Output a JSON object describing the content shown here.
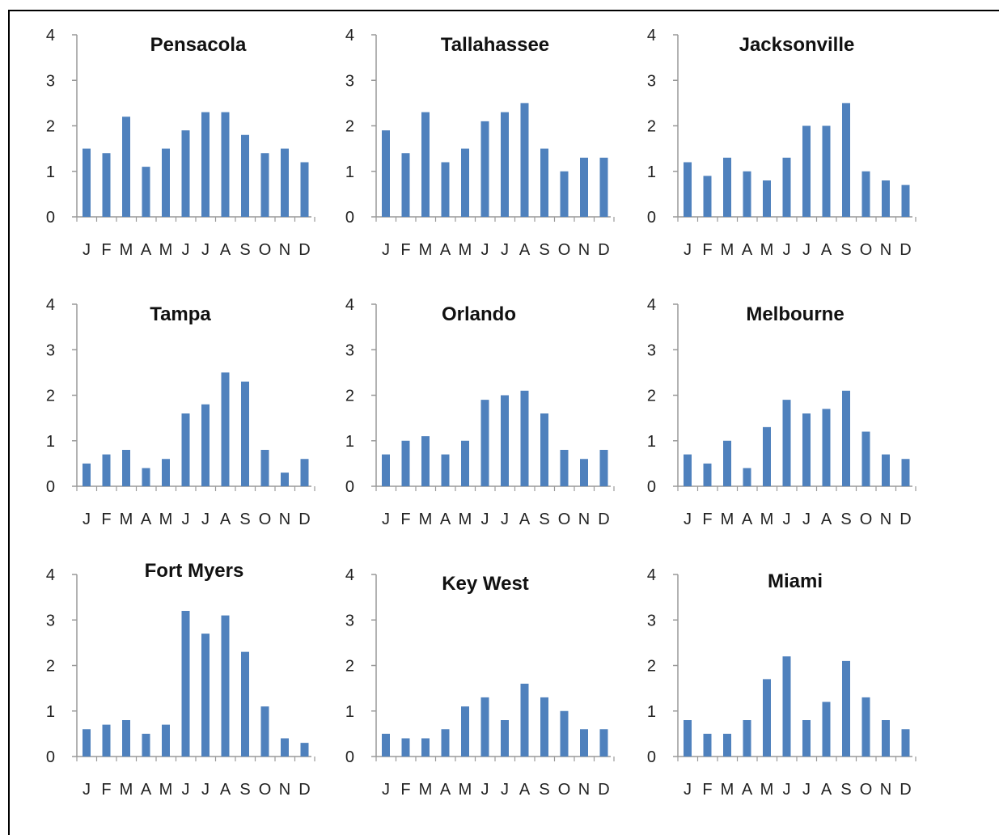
{
  "colors": {
    "bar": "#4F81BD",
    "axis": "#999999"
  },
  "chart_data": [
    {
      "type": "bar",
      "title": "Pensacola",
      "categories": [
        "J",
        "F",
        "M",
        "A",
        "M",
        "J",
        "J",
        "A",
        "S",
        "O",
        "N",
        "D"
      ],
      "values": [
        1.5,
        1.4,
        2.2,
        1.1,
        1.5,
        1.9,
        2.3,
        2.3,
        1.8,
        1.4,
        1.5,
        1.2
      ],
      "yticks": [
        "0",
        "1",
        "2",
        "3",
        "4"
      ],
      "ylim": [
        0,
        4
      ],
      "grid": false,
      "legend": "none"
    },
    {
      "type": "bar",
      "title": "Tallahassee",
      "categories": [
        "J",
        "F",
        "M",
        "A",
        "M",
        "J",
        "J",
        "A",
        "S",
        "O",
        "N",
        "D"
      ],
      "values": [
        1.9,
        1.4,
        2.3,
        1.2,
        1.5,
        2.1,
        2.3,
        2.5,
        1.5,
        1.0,
        1.3,
        1.3
      ],
      "yticks": [
        "0",
        "1",
        "2",
        "3",
        "4"
      ],
      "ylim": [
        0,
        4
      ],
      "grid": false,
      "legend": "none"
    },
    {
      "type": "bar",
      "title": "Jacksonville",
      "categories": [
        "J",
        "F",
        "M",
        "A",
        "M",
        "J",
        "J",
        "A",
        "S",
        "O",
        "N",
        "D"
      ],
      "values": [
        1.2,
        0.9,
        1.3,
        1.0,
        0.8,
        1.3,
        2.0,
        2.0,
        2.5,
        1.0,
        0.8,
        0.7
      ],
      "yticks": [
        "0",
        "1",
        "2",
        "3",
        "4"
      ],
      "ylim": [
        0,
        4
      ],
      "grid": false,
      "legend": "none"
    },
    {
      "type": "bar",
      "title": "Tampa",
      "categories": [
        "J",
        "F",
        "M",
        "A",
        "M",
        "J",
        "J",
        "A",
        "S",
        "O",
        "N",
        "D"
      ],
      "values": [
        0.5,
        0.7,
        0.8,
        0.4,
        0.6,
        1.6,
        1.8,
        2.5,
        2.3,
        0.8,
        0.3,
        0.6
      ],
      "yticks": [
        "0",
        "1",
        "2",
        "3",
        "4"
      ],
      "ylim": [
        0,
        4
      ],
      "grid": false,
      "legend": "none"
    },
    {
      "type": "bar",
      "title": "Orlando",
      "categories": [
        "J",
        "F",
        "M",
        "A",
        "M",
        "J",
        "J",
        "A",
        "S",
        "O",
        "N",
        "D"
      ],
      "values": [
        0.7,
        1.0,
        1.1,
        0.7,
        1.0,
        1.9,
        2.0,
        2.1,
        1.6,
        0.8,
        0.6,
        0.8
      ],
      "yticks": [
        "0",
        "1",
        "2",
        "3",
        "4"
      ],
      "ylim": [
        0,
        4
      ],
      "grid": false,
      "legend": "none"
    },
    {
      "type": "bar",
      "title": "Melbourne",
      "categories": [
        "J",
        "F",
        "M",
        "A",
        "M",
        "J",
        "J",
        "A",
        "S",
        "O",
        "N",
        "D"
      ],
      "values": [
        0.7,
        0.5,
        1.0,
        0.4,
        1.3,
        1.9,
        1.6,
        1.7,
        2.1,
        1.2,
        0.7,
        0.6
      ],
      "yticks": [
        "0",
        "1",
        "2",
        "3",
        "4"
      ],
      "ylim": [
        0,
        4
      ],
      "grid": false,
      "legend": "none"
    },
    {
      "type": "bar",
      "title": "Fort Myers",
      "categories": [
        "J",
        "F",
        "M",
        "A",
        "M",
        "J",
        "J",
        "A",
        "S",
        "O",
        "N",
        "D"
      ],
      "values": [
        0.6,
        0.7,
        0.8,
        0.5,
        0.7,
        3.2,
        2.7,
        3.1,
        2.3,
        1.1,
        0.4,
        0.3
      ],
      "yticks": [
        "0",
        "1",
        "2",
        "3",
        "4"
      ],
      "ylim": [
        0,
        4
      ],
      "grid": false,
      "legend": "none"
    },
    {
      "type": "bar",
      "title": "Key West",
      "categories": [
        "J",
        "F",
        "M",
        "A",
        "M",
        "J",
        "J",
        "A",
        "S",
        "O",
        "N",
        "D"
      ],
      "values": [
        0.5,
        0.4,
        0.4,
        0.6,
        1.1,
        1.3,
        0.8,
        1.6,
        1.3,
        1.0,
        0.6,
        0.6
      ],
      "yticks": [
        "0",
        "1",
        "2",
        "3",
        "4"
      ],
      "ylim": [
        0,
        4
      ],
      "grid": false,
      "legend": "none"
    },
    {
      "type": "bar",
      "title": "Miami",
      "categories": [
        "J",
        "F",
        "M",
        "A",
        "M",
        "J",
        "J",
        "A",
        "S",
        "O",
        "N",
        "D"
      ],
      "values": [
        0.8,
        0.5,
        0.5,
        0.8,
        1.7,
        2.2,
        0.8,
        1.2,
        2.1,
        1.3,
        0.8,
        0.6
      ],
      "yticks": [
        "0",
        "1",
        "2",
        "3",
        "4"
      ],
      "ylim": [
        0,
        4
      ],
      "grid": false,
      "legend": "none"
    }
  ]
}
